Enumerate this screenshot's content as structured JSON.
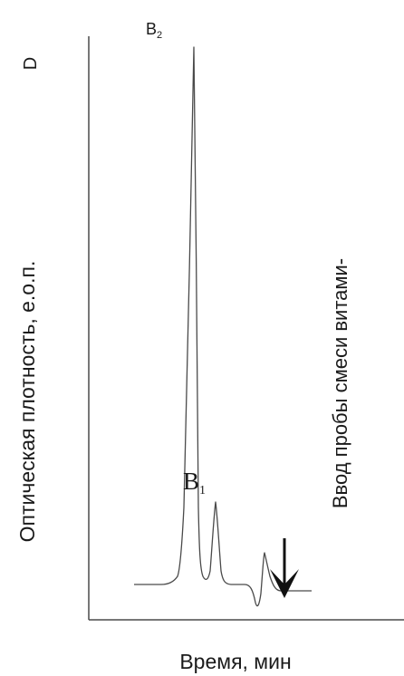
{
  "chart_data": {
    "type": "line",
    "title": "",
    "corner_label": "D",
    "xlabel": "Время, мин",
    "ylabel": "Оптическая плотность, е.о.п.",
    "grid": false,
    "ticks": false,
    "peak_labels": [
      {
        "base": "B",
        "sub": "2"
      },
      {
        "base": "B",
        "sub": "1"
      }
    ],
    "injection_label": "Ввод пробы смеси витами-",
    "colors": {
      "trace": "#4a4a4a",
      "axis": "#4a4a4a",
      "arrow": "#111111"
    }
  }
}
